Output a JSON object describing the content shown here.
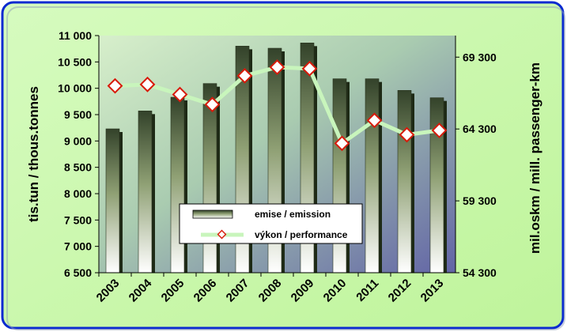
{
  "chart_data": {
    "type": "bar",
    "categories": [
      "2003",
      "2004",
      "2005",
      "2006",
      "2007",
      "2008",
      "2009",
      "2010",
      "2011",
      "2012",
      "2013"
    ],
    "series": [
      {
        "name": "emise / emission",
        "type": "bar",
        "axis": "left",
        "values": [
          9230,
          9570,
          9830,
          10090,
          10800,
          10760,
          10860,
          10180,
          10180,
          9960,
          9820
        ]
      },
      {
        "name": "výkon / performance",
        "type": "line",
        "axis": "right",
        "values": [
          67300,
          67400,
          66700,
          66000,
          68000,
          68600,
          68500,
          63300,
          64900,
          63900,
          64200
        ]
      }
    ],
    "ylabel": "tis.tun / thous.tonnes",
    "ylabel_right": "mil.oskm / mill. passenger-km",
    "ylim": [
      6500,
      11000
    ],
    "ylim_right": [
      54300,
      70800
    ],
    "y_ticks": [
      "6 500",
      "7 000",
      "7 500",
      "8 000",
      "8 500",
      "9 000",
      "9 500",
      "10 000",
      "10 500",
      "11 000"
    ],
    "y_ticks_right": [
      "54 300",
      "59 300",
      "64 300",
      "69 300"
    ],
    "legend_position": "center-bottom",
    "colors": {
      "frame_bg": "#c8f7a8",
      "frame_border": "#0a2ad0",
      "bar_dark": "#3d4e2c",
      "bar_light": "#ffffff",
      "line": "#c8f5bc",
      "marker_stroke": "#d81a0a",
      "marker_fill": "#ffffff",
      "plot_top": "#cde9c1",
      "plot_bottom": "#6d6da9"
    }
  }
}
